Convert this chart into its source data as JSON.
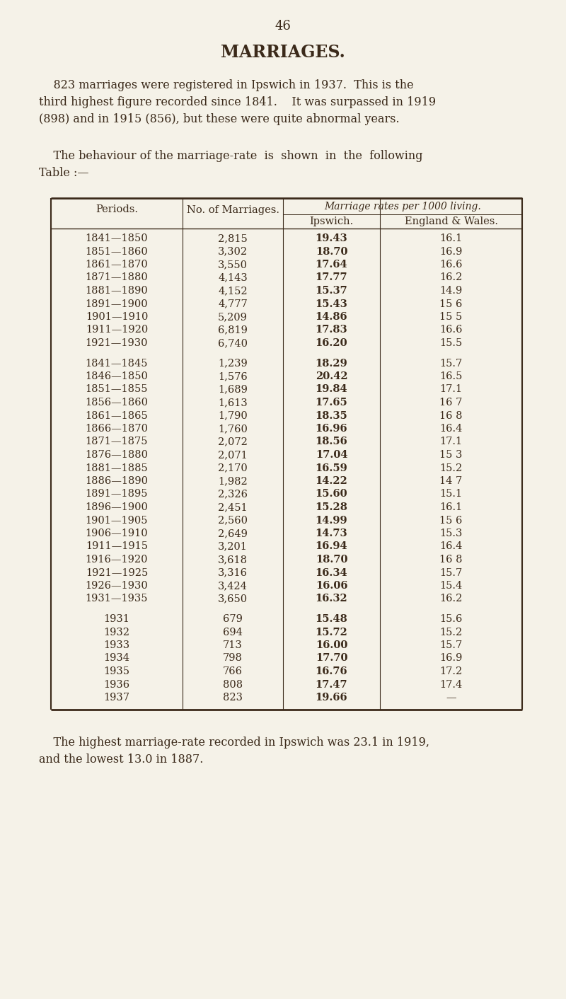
{
  "page_number": "46",
  "title": "MARRIAGES.",
  "paragraph1_indent": "    823 marriages were registered in Ipswich in 1937.  This is the",
  "paragraph1_line2": "third highest figure recorded since 1841.    It was surpassed in 1919",
  "paragraph1_line3": "(898) and in 1915 (856), but these were quite abnormal years.",
  "paragraph2_line1": "    The behaviour of the marriage-rate  is  shown  in  the  following",
  "paragraph2_line2": "Table :—",
  "footer_line1": "    The highest marriage-rate recorded in Ipswich was 23.1 in 1919,",
  "footer_line2": "and the lowest 13.0 in 1887.",
  "col_subheader": "Marriage rates per 1000 living.",
  "rows_group1": [
    [
      "1841—1850",
      "2,815",
      "19.43",
      "16.1"
    ],
    [
      "1851—1860",
      "3,302",
      "18.70",
      "16.9"
    ],
    [
      "1861—1870",
      "3,550",
      "17.64",
      "16.6"
    ],
    [
      "1871—1880",
      "4,143",
      "17.77",
      "16.2"
    ],
    [
      "1881—1890",
      "4,152",
      "15.37",
      "14.9"
    ],
    [
      "1891—1900",
      "4,777",
      "15.43",
      "15 6"
    ],
    [
      "1901—1910",
      "5,209",
      "14.86",
      "15 5"
    ],
    [
      "1911—1920",
      "6,819",
      "17.83",
      "16.6"
    ],
    [
      "1921—1930",
      "6,740",
      "16.20",
      "15.5"
    ]
  ],
  "rows_group2": [
    [
      "1841—1845",
      "1,239",
      "18.29",
      "15.7"
    ],
    [
      "1846—1850",
      "1,576",
      "20.42",
      "16.5"
    ],
    [
      "1851—1855",
      "1,689",
      "19.84",
      "17.1"
    ],
    [
      "1856—1860",
      "1,613",
      "17.65",
      "16 7"
    ],
    [
      "1861—1865",
      "1,790",
      "18.35",
      "16 8"
    ],
    [
      "1866—1870",
      "1,760",
      "16.96",
      "16.4"
    ],
    [
      "1871—1875",
      "2,072",
      "18.56",
      "17.1"
    ],
    [
      "1876—1880",
      "2,071",
      "17.04",
      "15 3"
    ],
    [
      "1881—1885",
      "2,170",
      "16.59",
      "15.2"
    ],
    [
      "1886—1890",
      "1,982",
      "14.22",
      "14 7"
    ],
    [
      "1891—1895",
      "2,326",
      "15.60",
      "15.1"
    ],
    [
      "1896—1900",
      "2,451",
      "15.28",
      "16.1"
    ],
    [
      "1901—1905",
      "2,560",
      "14.99",
      "15 6"
    ],
    [
      "1906—1910",
      "2,649",
      "14.73",
      "15.3"
    ],
    [
      "1911—1915",
      "3,201",
      "16.94",
      "16.4"
    ],
    [
      "1916—1920",
      "3,618",
      "18.70",
      "16 8"
    ],
    [
      "1921—1925",
      "3,316",
      "16.34",
      "15.7"
    ],
    [
      "1926—1930",
      "3,424",
      "16.06",
      "15.4"
    ],
    [
      "1931—1935",
      "3,650",
      "16.32",
      "16.2"
    ]
  ],
  "rows_group3": [
    [
      "1931",
      "679",
      "15.48",
      "15.6"
    ],
    [
      "1932",
      "694",
      "15.72",
      "15.2"
    ],
    [
      "1933",
      "713",
      "16.00",
      "15.7"
    ],
    [
      "1934",
      "798",
      "17.70",
      "16.9"
    ],
    [
      "1935",
      "766",
      "16.76",
      "17.2"
    ],
    [
      "1936",
      "808",
      "17.47",
      "17.4"
    ],
    [
      "1937",
      "823",
      "19.66",
      "—"
    ]
  ],
  "bg_color": "#f5f2e8",
  "text_color": "#3b2a1a",
  "table_line_color": "#3b2a1a",
  "font_size_title": 17,
  "font_size_body": 11.5,
  "font_size_table": 10.5,
  "font_size_page": 13
}
